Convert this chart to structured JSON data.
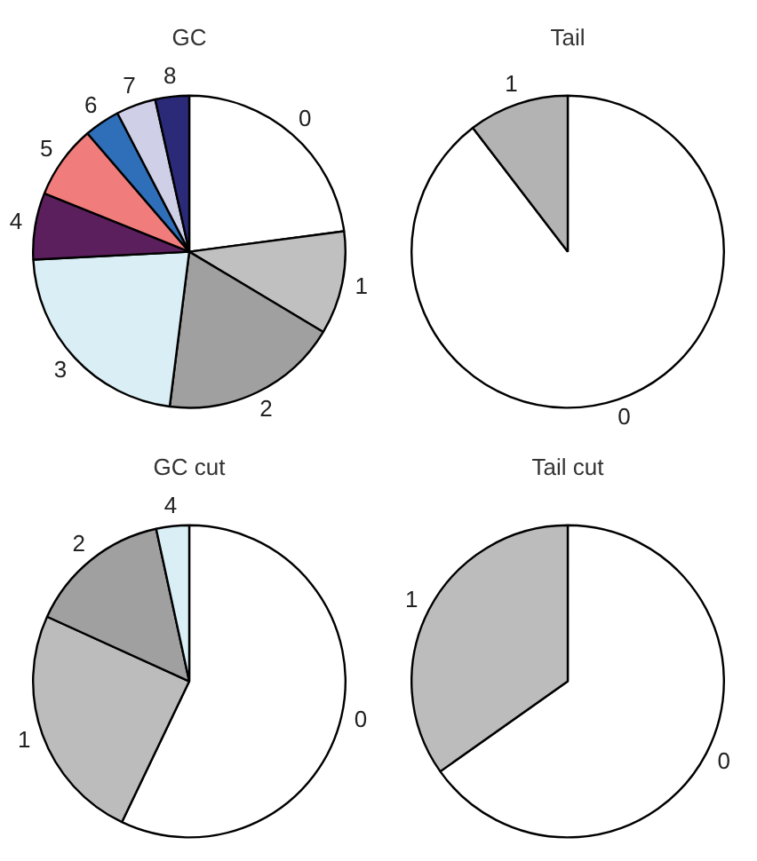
{
  "chart_data": [
    {
      "type": "pie",
      "title": "GC",
      "categories": [
        "0",
        "1",
        "2",
        "3",
        "4",
        "5",
        "6",
        "7",
        "8"
      ],
      "values": [
        22.9,
        10.7,
        18.4,
        22.2,
        6.9,
        7.6,
        3.7,
        4.1,
        3.5
      ],
      "colors": [
        "#ffffff",
        "#c0c0c0",
        "#a0a0a0",
        "#d9eef5",
        "#5c1f5e",
        "#f07c7c",
        "#2f6eb8",
        "#cfcfe8",
        "#2a2a78"
      ]
    },
    {
      "type": "pie",
      "title": "Tail",
      "categories": [
        "0",
        "1"
      ],
      "values": [
        89.6,
        10.4
      ],
      "colors": [
        "#ffffff",
        "#b3b3b3"
      ]
    },
    {
      "type": "pie",
      "title": "GC cut",
      "categories": [
        "0",
        "1",
        "2",
        "4"
      ],
      "values": [
        57.1,
        24.7,
        14.8,
        3.4
      ],
      "colors": [
        "#ffffff",
        "#bcbcbc",
        "#a0a0a0",
        "#d9eef5"
      ]
    },
    {
      "type": "pie",
      "title": "Tail cut",
      "categories": [
        "0",
        "1"
      ],
      "values": [
        65.2,
        34.8
      ],
      "colors": [
        "#ffffff",
        "#bcbcbc"
      ]
    }
  ]
}
